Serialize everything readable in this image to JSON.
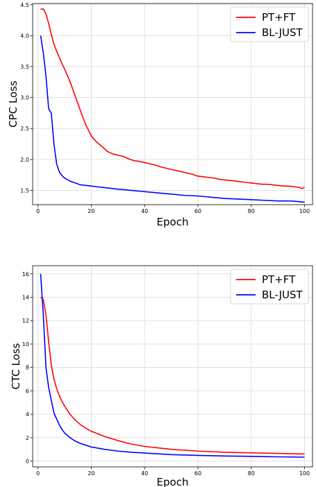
{
  "chart_data": [
    {
      "type": "line",
      "xlabel": "Epoch",
      "ylabel": "CPC Loss",
      "xlim": [
        -2,
        103
      ],
      "ylim": [
        1.27,
        4.52
      ],
      "xticks": [
        0,
        20,
        40,
        60,
        80,
        100
      ],
      "yticks": [
        1.5,
        2.0,
        2.5,
        3.0,
        3.5,
        4.0,
        4.5
      ],
      "xtick_labels": [
        "0",
        "20",
        "40",
        "60",
        "80",
        "100"
      ],
      "ytick_labels": [
        "1.5",
        "2.0",
        "2.5",
        "3.0",
        "3.5",
        "4.0",
        "4.5"
      ],
      "grid": true,
      "legend_position": "top-right",
      "series": [
        {
          "name": "PT+FT",
          "color": "#ff0000",
          "x": [
            1,
            2,
            3,
            4,
            5,
            6,
            7,
            8,
            9,
            10,
            12,
            14,
            16,
            18,
            19,
            20,
            22,
            24,
            26,
            28,
            30,
            32,
            34,
            36,
            38,
            40,
            42,
            44,
            46,
            48,
            50,
            52,
            54,
            56,
            58,
            60,
            62,
            64,
            66,
            68,
            70,
            72,
            74,
            76,
            78,
            80,
            82,
            84,
            86,
            88,
            90,
            92,
            94,
            96,
            98,
            99,
            100
          ],
          "y": [
            4.43,
            4.43,
            4.35,
            4.2,
            4.02,
            3.86,
            3.75,
            3.65,
            3.55,
            3.46,
            3.26,
            3.02,
            2.78,
            2.55,
            2.47,
            2.38,
            2.28,
            2.21,
            2.13,
            2.09,
            2.07,
            2.05,
            2.01,
            1.98,
            1.97,
            1.95,
            1.93,
            1.91,
            1.88,
            1.86,
            1.84,
            1.82,
            1.8,
            1.78,
            1.76,
            1.73,
            1.72,
            1.71,
            1.7,
            1.68,
            1.67,
            1.66,
            1.65,
            1.64,
            1.63,
            1.62,
            1.61,
            1.6,
            1.6,
            1.59,
            1.58,
            1.57,
            1.57,
            1.56,
            1.55,
            1.53,
            1.55
          ]
        },
        {
          "name": "BL-JUST",
          "color": "#0000ff",
          "x": [
            1,
            2,
            3,
            4,
            5,
            6,
            7,
            8,
            9,
            10,
            12,
            14,
            16,
            18,
            20,
            22,
            24,
            26,
            28,
            30,
            35,
            40,
            45,
            50,
            55,
            60,
            65,
            70,
            75,
            80,
            85,
            90,
            95,
            100
          ],
          "y": [
            4.0,
            3.72,
            3.35,
            2.82,
            2.75,
            2.25,
            1.93,
            1.8,
            1.74,
            1.7,
            1.65,
            1.62,
            1.59,
            1.58,
            1.57,
            1.56,
            1.55,
            1.54,
            1.53,
            1.52,
            1.5,
            1.48,
            1.46,
            1.44,
            1.42,
            1.41,
            1.39,
            1.37,
            1.36,
            1.35,
            1.34,
            1.33,
            1.33,
            1.31
          ]
        }
      ]
    },
    {
      "type": "line",
      "xlabel": "Epoch",
      "ylabel": "CTC Loss",
      "xlim": [
        -2,
        103
      ],
      "ylim": [
        -0.5,
        16.7
      ],
      "xticks": [
        0,
        20,
        40,
        60,
        80,
        100
      ],
      "yticks": [
        0,
        2,
        4,
        6,
        8,
        10,
        12,
        14,
        16
      ],
      "xtick_labels": [
        "0",
        "20",
        "40",
        "60",
        "80",
        "100"
      ],
      "ytick_labels": [
        "0",
        "2",
        "4",
        "6",
        "8",
        "10",
        "12",
        "14",
        "16"
      ],
      "grid": true,
      "legend_position": "top-right",
      "series": [
        {
          "name": "PT+FT",
          "color": "#ff0000",
          "x": [
            1,
            2,
            3,
            4,
            5,
            6,
            7,
            8,
            9,
            10,
            12,
            14,
            16,
            18,
            20,
            25,
            30,
            35,
            40,
            50,
            60,
            70,
            80,
            90,
            100
          ],
          "y": [
            14.0,
            13.8,
            12.5,
            10.2,
            8.2,
            7.0,
            6.2,
            5.6,
            5.1,
            4.7,
            4.0,
            3.5,
            3.1,
            2.8,
            2.55,
            2.1,
            1.75,
            1.45,
            1.25,
            1.0,
            0.85,
            0.75,
            0.7,
            0.65,
            0.6
          ]
        },
        {
          "name": "BL-JUST",
          "color": "#0000ff",
          "x": [
            1,
            2,
            3,
            4,
            5,
            6,
            7,
            8,
            9,
            10,
            12,
            14,
            16,
            18,
            20,
            25,
            30,
            35,
            40,
            50,
            60,
            70,
            80,
            90,
            100
          ],
          "y": [
            16.0,
            12.5,
            8.0,
            6.3,
            5.2,
            4.1,
            3.6,
            3.1,
            2.7,
            2.4,
            2.0,
            1.7,
            1.5,
            1.35,
            1.2,
            1.0,
            0.85,
            0.75,
            0.68,
            0.55,
            0.48,
            0.43,
            0.4,
            0.36,
            0.33
          ]
        }
      ]
    }
  ]
}
